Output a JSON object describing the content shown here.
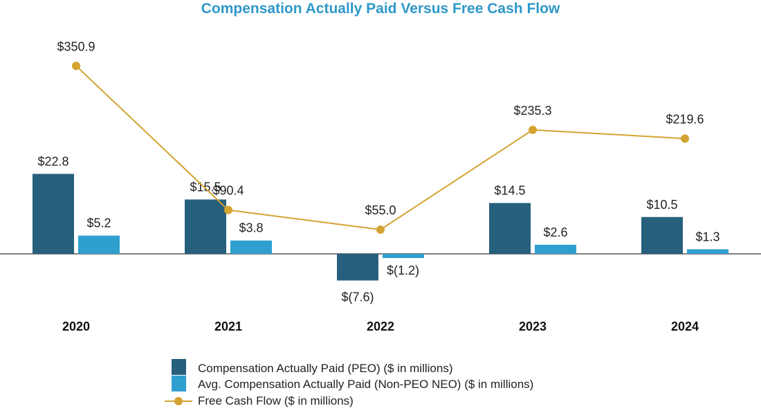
{
  "colors": {
    "title": "#2f98c9",
    "peo": "#27607d",
    "neo": "#2f9fcf",
    "fcf": "#d3a331",
    "axis": "#555555"
  },
  "chart_data": {
    "type": "bar",
    "title": "Compensation Actually Paid Versus Free Cash Flow",
    "categories": [
      "2020",
      "2021",
      "2022",
      "2023",
      "2024"
    ],
    "series": [
      {
        "key": "peo",
        "name": "Compensation Actually Paid (PEO) ($ in millions)",
        "kind": "bar",
        "values": [
          22.8,
          15.5,
          -7.6,
          14.5,
          10.5
        ],
        "labels": [
          "$22.8",
          "$15.5",
          "$(7.6)",
          "$14.5",
          "$10.5"
        ]
      },
      {
        "key": "neo",
        "name": "Avg. Compensation Actually Paid (Non-PEO NEO) ($ in millions)",
        "kind": "bar",
        "values": [
          5.2,
          3.8,
          -1.2,
          2.6,
          1.3
        ],
        "labels": [
          "$5.2",
          "$3.8",
          "$(1.2)",
          "$2.6",
          "$1.3"
        ]
      },
      {
        "key": "fcf",
        "name": "Free Cash Flow ($ in millions)",
        "kind": "line",
        "values": [
          350.9,
          90.4,
          55.0,
          235.3,
          219.6
        ],
        "labels": [
          "$350.9",
          "$90.4",
          "$55.0",
          "$235.3",
          "$219.6"
        ]
      }
    ],
    "legend_position": "bottom-center",
    "grid": false
  }
}
